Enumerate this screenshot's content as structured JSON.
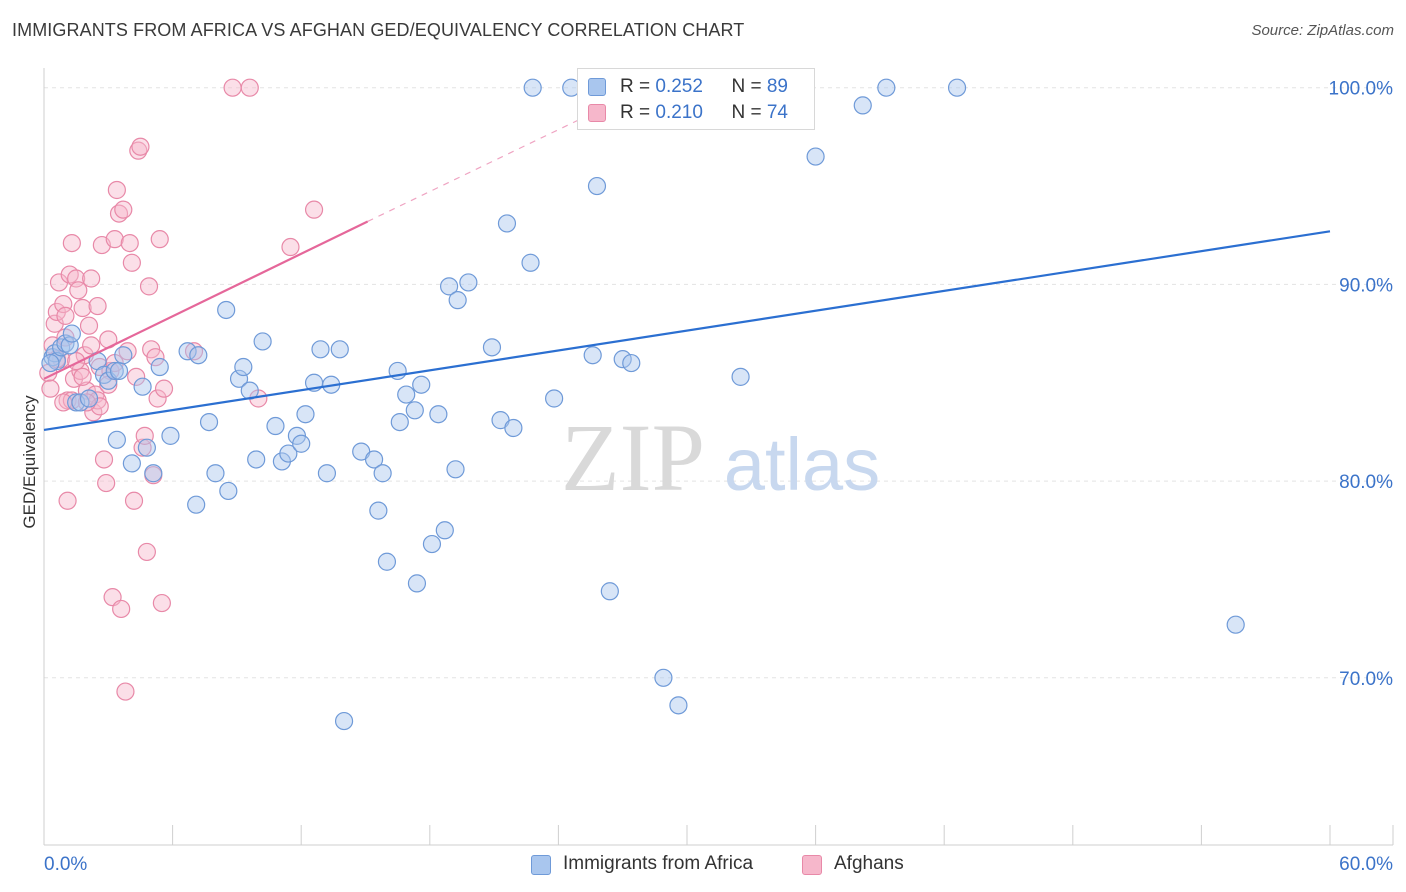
{
  "title": "IMMIGRANTS FROM AFRICA VS AFGHAN GED/EQUIVALENCY CORRELATION CHART",
  "source": "Source: ZipAtlas.com",
  "watermark": {
    "zip": "ZIP",
    "atlas": "atlas"
  },
  "colors": {
    "blue_fill": "#a9c6ee",
    "blue_stroke": "#6f9ad8",
    "blue_line": "#2b6fd1",
    "pink_fill": "#f6b7cb",
    "pink_stroke": "#e889a8",
    "pink_line": "#e5679a",
    "tick_text": "#3b73c9",
    "grid": "#e3e3e3"
  },
  "legend_top": [
    {
      "r_label": "R = ",
      "r_value": "0.252",
      "n_label": "N = ",
      "n_value": "89",
      "color": "blue"
    },
    {
      "r_label": "R = ",
      "r_value": "0.210",
      "n_label": "N = ",
      "n_value": "74",
      "color": "pink"
    }
  ],
  "legend_bottom": [
    {
      "label": "Immigrants from Africa",
      "color": "blue"
    },
    {
      "label": "Afghans",
      "color": "pink"
    }
  ],
  "chart_data": {
    "type": "scatter",
    "title": "IMMIGRANTS FROM AFRICA VS AFGHAN GED/EQUIVALENCY CORRELATION CHART",
    "xlabel": "",
    "ylabel": "GED/Equivalency",
    "xlim": [
      0,
      60
    ],
    "ylim": [
      61.5,
      100.9
    ],
    "x_tick_labels": [
      "0.0%",
      "60.0%"
    ],
    "y_ticks": [
      70,
      80,
      90,
      100
    ],
    "y_tick_labels": [
      "70.0%",
      "80.0%",
      "90.0%",
      "100.0%"
    ],
    "grid": true,
    "legend_position": "top-center",
    "series": [
      {
        "name": "Immigrants from Africa",
        "r": 0.252,
        "n": 89,
        "trend": {
          "x": [
            0,
            60
          ],
          "y": [
            82.6,
            92.7
          ]
        },
        "points": [
          [
            0.4,
            86.3
          ],
          [
            0.5,
            86.5
          ],
          [
            0.6,
            86.1
          ],
          [
            0.8,
            86.8
          ],
          [
            1.0,
            87.0
          ],
          [
            1.2,
            86.9
          ],
          [
            1.3,
            87.5
          ],
          [
            1.5,
            84.0
          ],
          [
            1.7,
            84.0
          ],
          [
            2.1,
            84.2
          ],
          [
            2.5,
            86.1
          ],
          [
            2.8,
            85.4
          ],
          [
            3.0,
            85.1
          ],
          [
            3.3,
            85.6
          ],
          [
            3.4,
            82.1
          ],
          [
            3.5,
            85.6
          ],
          [
            3.7,
            86.4
          ],
          [
            4.1,
            80.9
          ],
          [
            4.6,
            84.8
          ],
          [
            4.8,
            81.7
          ],
          [
            5.1,
            80.4
          ],
          [
            5.4,
            85.8
          ],
          [
            5.9,
            82.3
          ],
          [
            6.7,
            86.6
          ],
          [
            7.1,
            78.8
          ],
          [
            7.2,
            86.4
          ],
          [
            7.7,
            83.0
          ],
          [
            8.0,
            80.4
          ],
          [
            8.5,
            88.7
          ],
          [
            8.6,
            79.5
          ],
          [
            9.1,
            85.2
          ],
          [
            9.3,
            85.8
          ],
          [
            9.6,
            84.6
          ],
          [
            9.9,
            81.1
          ],
          [
            10.2,
            87.1
          ],
          [
            10.8,
            82.8
          ],
          [
            11.1,
            81.0
          ],
          [
            11.4,
            81.4
          ],
          [
            11.8,
            82.3
          ],
          [
            12.0,
            81.9
          ],
          [
            12.2,
            83.4
          ],
          [
            12.6,
            85.0
          ],
          [
            12.9,
            86.7
          ],
          [
            13.2,
            80.4
          ],
          [
            13.4,
            84.9
          ],
          [
            13.8,
            86.7
          ],
          [
            14.0,
            67.8
          ],
          [
            14.8,
            81.5
          ],
          [
            15.4,
            81.1
          ],
          [
            15.6,
            78.5
          ],
          [
            15.8,
            80.4
          ],
          [
            16.0,
            75.9
          ],
          [
            16.5,
            85.6
          ],
          [
            16.6,
            83.0
          ],
          [
            16.9,
            84.4
          ],
          [
            17.3,
            83.6
          ],
          [
            17.4,
            74.8
          ],
          [
            17.6,
            84.9
          ],
          [
            18.1,
            76.8
          ],
          [
            18.4,
            83.4
          ],
          [
            18.7,
            77.5
          ],
          [
            18.9,
            89.9
          ],
          [
            19.2,
            80.6
          ],
          [
            19.3,
            89.2
          ],
          [
            19.8,
            90.1
          ],
          [
            20.9,
            86.8
          ],
          [
            21.3,
            83.1
          ],
          [
            21.6,
            93.1
          ],
          [
            21.9,
            82.7
          ],
          [
            22.7,
            91.1
          ],
          [
            22.8,
            100.0
          ],
          [
            23.8,
            84.2
          ],
          [
            24.6,
            100.0
          ],
          [
            25.6,
            86.4
          ],
          [
            25.8,
            95.0
          ],
          [
            26.4,
            74.4
          ],
          [
            27.0,
            86.2
          ],
          [
            27.4,
            86.0
          ],
          [
            28.0,
            100.0
          ],
          [
            28.9,
            70.0
          ],
          [
            29.6,
            68.6
          ],
          [
            32.5,
            85.3
          ],
          [
            34.3,
            100.0
          ],
          [
            36.0,
            96.5
          ],
          [
            38.2,
            99.1
          ],
          [
            39.3,
            100.0
          ],
          [
            42.6,
            100.0
          ],
          [
            55.6,
            72.7
          ],
          [
            0.3,
            86.0
          ]
        ]
      },
      {
        "name": "Afghans",
        "r": 0.21,
        "n": 74,
        "trend": {
          "x": [
            0,
            15.1
          ],
          "y": [
            85.2,
            93.2
          ]
        },
        "trend_dashed": {
          "x": [
            15.1,
            25.4
          ],
          "y": [
            93.2,
            98.6
          ]
        },
        "points": [
          [
            0.2,
            85.5
          ],
          [
            0.3,
            84.7
          ],
          [
            0.4,
            86.9
          ],
          [
            0.5,
            88.0
          ],
          [
            0.6,
            88.6
          ],
          [
            0.7,
            90.1
          ],
          [
            0.8,
            86.2
          ],
          [
            0.9,
            89.0
          ],
          [
            1.0,
            87.3
          ],
          [
            1.1,
            84.1
          ],
          [
            1.2,
            90.5
          ],
          [
            1.3,
            92.1
          ],
          [
            1.4,
            85.2
          ],
          [
            1.5,
            90.3
          ],
          [
            1.6,
            89.7
          ],
          [
            1.7,
            85.6
          ],
          [
            1.8,
            88.8
          ],
          [
            1.9,
            86.4
          ],
          [
            2.0,
            84.6
          ],
          [
            2.1,
            87.9
          ],
          [
            2.2,
            90.3
          ],
          [
            2.3,
            83.5
          ],
          [
            2.4,
            84.4
          ],
          [
            2.5,
            84.1
          ],
          [
            2.6,
            85.8
          ],
          [
            2.7,
            92.0
          ],
          [
            2.8,
            81.1
          ],
          [
            2.9,
            79.9
          ],
          [
            3.0,
            87.2
          ],
          [
            3.1,
            85.6
          ],
          [
            3.2,
            74.1
          ],
          [
            3.3,
            92.3
          ],
          [
            3.4,
            94.8
          ],
          [
            3.5,
            93.6
          ],
          [
            3.6,
            73.5
          ],
          [
            3.7,
            93.8
          ],
          [
            3.8,
            69.3
          ],
          [
            3.9,
            86.6
          ],
          [
            4.0,
            92.1
          ],
          [
            4.1,
            91.1
          ],
          [
            4.2,
            79.0
          ],
          [
            4.3,
            85.3
          ],
          [
            4.4,
            96.8
          ],
          [
            4.5,
            97.0
          ],
          [
            4.6,
            81.7
          ],
          [
            4.7,
            82.3
          ],
          [
            4.8,
            76.4
          ],
          [
            4.9,
            89.9
          ],
          [
            5.0,
            86.7
          ],
          [
            5.1,
            80.3
          ],
          [
            5.2,
            86.3
          ],
          [
            5.3,
            84.2
          ],
          [
            5.4,
            92.3
          ],
          [
            5.5,
            73.8
          ],
          [
            5.6,
            84.7
          ],
          [
            1.1,
            79.0
          ],
          [
            1.3,
            84.1
          ],
          [
            7.0,
            86.6
          ],
          [
            8.8,
            100.0
          ],
          [
            9.6,
            100.0
          ],
          [
            10.0,
            84.2
          ],
          [
            11.5,
            91.9
          ],
          [
            12.6,
            93.8
          ],
          [
            1.0,
            88.4
          ],
          [
            2.5,
            88.9
          ],
          [
            0.6,
            86.2
          ],
          [
            1.5,
            86.1
          ],
          [
            2.2,
            86.9
          ],
          [
            1.8,
            85.3
          ],
          [
            2.6,
            83.8
          ],
          [
            3.0,
            84.9
          ],
          [
            0.9,
            84.0
          ],
          [
            3.3,
            86.0
          ],
          [
            2.0,
            84.0
          ]
        ]
      }
    ]
  }
}
